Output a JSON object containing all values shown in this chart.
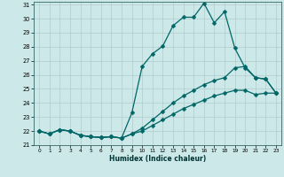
{
  "xlabel": "Humidex (Indice chaleur)",
  "xlim": [
    -0.5,
    23.5
  ],
  "ylim": [
    21,
    31.2
  ],
  "xticks": [
    0,
    1,
    2,
    3,
    4,
    5,
    6,
    7,
    8,
    9,
    10,
    11,
    12,
    13,
    14,
    15,
    16,
    17,
    18,
    19,
    20,
    21,
    22,
    23
  ],
  "yticks": [
    21,
    22,
    23,
    24,
    25,
    26,
    27,
    28,
    29,
    30,
    31
  ],
  "bg_color": "#cce8e8",
  "grid_color": "#b0cccc",
  "line_color": "#006666",
  "line1_y": [
    22.0,
    21.8,
    22.1,
    22.0,
    21.7,
    21.6,
    21.55,
    21.6,
    21.5,
    23.3,
    26.6,
    27.5,
    28.05,
    29.5,
    30.1,
    30.1,
    31.1,
    29.7,
    30.5,
    27.9,
    26.5,
    25.8,
    25.7,
    24.7
  ],
  "line2_y": [
    22.0,
    21.8,
    22.1,
    22.0,
    21.7,
    21.6,
    21.55,
    21.6,
    21.5,
    21.8,
    22.2,
    22.8,
    23.4,
    24.0,
    24.5,
    24.9,
    25.3,
    25.6,
    25.8,
    26.5,
    26.6,
    25.8,
    25.7,
    24.7
  ],
  "line3_y": [
    22.0,
    21.8,
    22.1,
    22.0,
    21.7,
    21.6,
    21.55,
    21.6,
    21.5,
    21.8,
    22.0,
    22.4,
    22.8,
    23.2,
    23.6,
    23.9,
    24.2,
    24.5,
    24.7,
    24.9,
    24.9,
    24.6,
    24.7,
    24.7
  ],
  "markersize": 2.5,
  "linewidth": 0.9
}
